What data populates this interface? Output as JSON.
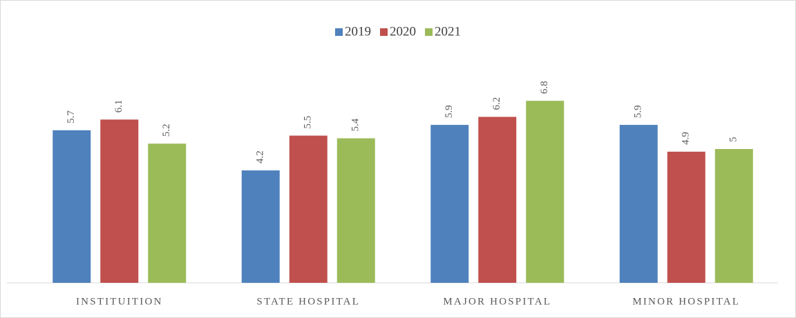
{
  "chart_data": {
    "type": "bar",
    "categories": [
      "INSTITUITION",
      "STATE HOSPITAL",
      "MAJOR HOSPITAL",
      "MINOR HOSPITAL"
    ],
    "series": [
      {
        "name": "2019",
        "color": "#4f81bd",
        "values": [
          5.7,
          4.2,
          5.9,
          5.9
        ]
      },
      {
        "name": "2020",
        "color": "#c0504d",
        "values": [
          6.1,
          5.5,
          6.2,
          4.9
        ]
      },
      {
        "name": "2021",
        "color": "#9bbb59",
        "values": [
          5.2,
          5.4,
          6.8,
          5
        ]
      }
    ],
    "ylim": [
      0,
      10
    ],
    "legend": "top",
    "grid": false
  }
}
